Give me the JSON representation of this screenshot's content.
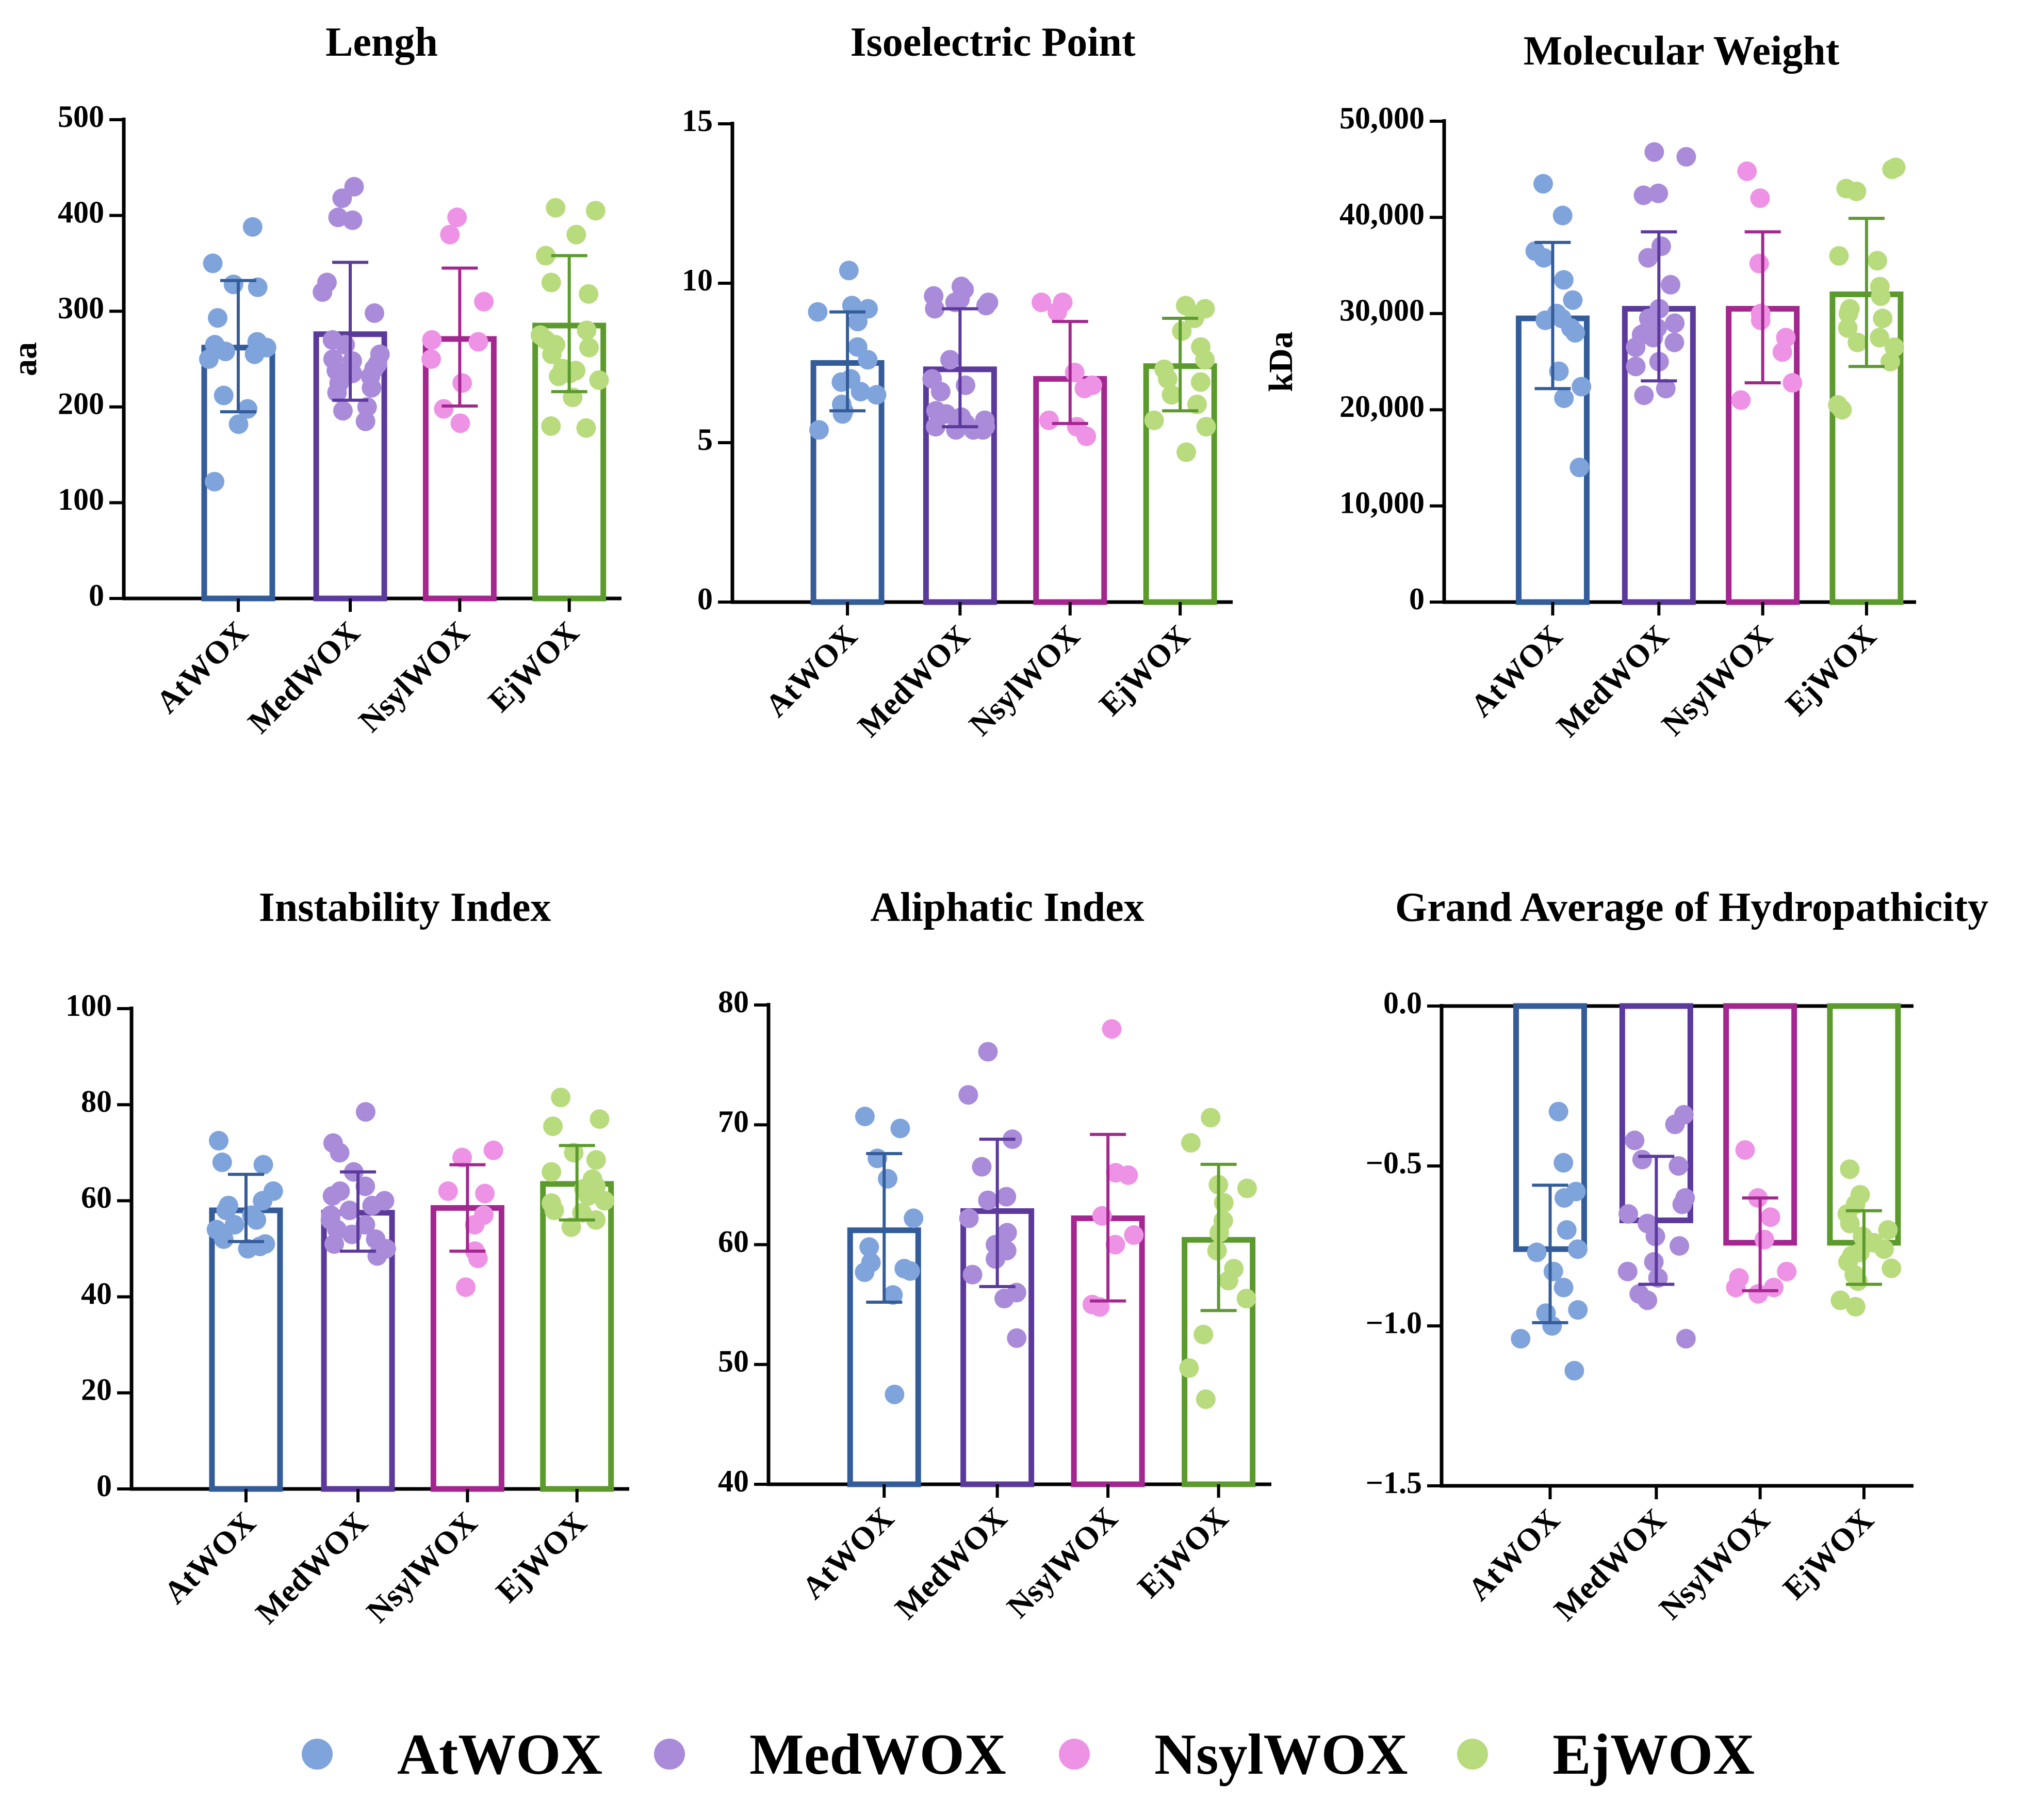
{
  "groups": [
    "AtWOX",
    "MedWOX",
    "NsylWOX",
    "EjWOX"
  ],
  "colors": {
    "bar": [
      "#335C99",
      "#5B3A9C",
      "#A3278F",
      "#5C9A2E"
    ],
    "dot": [
      "#7FA3DB",
      "#A98BD9",
      "#EE92E6",
      "#B8DB7D"
    ]
  },
  "legend": [
    {
      "label": "AtWOX",
      "color": "#7FA3DB"
    },
    {
      "label": "MedWOX",
      "color": "#A98BD9"
    },
    {
      "label": "NsylWOX",
      "color": "#EE92E6"
    },
    {
      "label": "EjWOX",
      "color": "#B8DB7D"
    }
  ],
  "chart_data": [
    {
      "type": "bar",
      "title": "Lengh",
      "ylabel": "aa",
      "ylim": [
        0,
        500
      ],
      "ticks": [
        0,
        100,
        200,
        300,
        400,
        500
      ],
      "tick_labels": [
        "0",
        "100",
        "200",
        "300",
        "400",
        "500"
      ],
      "categories": [
        "AtWOX",
        "MedWOX",
        "NsylWOX",
        "EjWOX"
      ],
      "means": [
        262,
        276,
        271,
        285
      ],
      "errors": [
        [
          195,
          332
        ],
        [
          207,
          351
        ],
        [
          201,
          345
        ],
        [
          216,
          358
        ]
      ],
      "points": [
        [
          388,
          350,
          328,
          325,
          293,
          268,
          265,
          262,
          258,
          255,
          250,
          212,
          198,
          182,
          122
        ],
        [
          430,
          418,
          398,
          395,
          330,
          320,
          298,
          270,
          265,
          255,
          250,
          248,
          245,
          240,
          238,
          235,
          232,
          225,
          220,
          215,
          200,
          196,
          185
        ],
        [
          398,
          380,
          310,
          270,
          268,
          250,
          225,
          198,
          183
        ],
        [
          408,
          405,
          380,
          358,
          330,
          318,
          280,
          275,
          270,
          265,
          262,
          255,
          240,
          238,
          235,
          232,
          228,
          210,
          180,
          178
        ]
      ]
    },
    {
      "type": "bar",
      "title": "Isoelectric Point",
      "ylabel": "",
      "ylim": [
        0,
        15
      ],
      "ticks": [
        0,
        5,
        10,
        15
      ],
      "tick_labels": [
        "0",
        "5",
        "10",
        "15"
      ],
      "categories": [
        "AtWOX",
        "MedWOX",
        "NsylWOX",
        "EjWOX"
      ],
      "means": [
        7.5,
        7.3,
        7.0,
        7.4
      ],
      "errors": [
        [
          6.0,
          9.1
        ],
        [
          5.5,
          9.2
        ],
        [
          5.6,
          8.8
        ],
        [
          6.0,
          8.9
        ]
      ],
      "points": [
        [
          10.4,
          9.3,
          9.2,
          9.1,
          8.8,
          8.0,
          7.6,
          7.0,
          6.9,
          6.6,
          6.5,
          6.2,
          6.0,
          5.9,
          5.4
        ],
        [
          9.9,
          9.8,
          9.6,
          9.5,
          9.4,
          9.4,
          9.3,
          9.2,
          7.6,
          7.0,
          6.8,
          6.6,
          6.0,
          5.9,
          5.8,
          5.7,
          5.6,
          5.5,
          5.5,
          5.4,
          5.4,
          5.4
        ],
        [
          9.4,
          9.4,
          9.1,
          7.2,
          6.8,
          6.7,
          5.7,
          5.5,
          5.2
        ],
        [
          9.3,
          9.2,
          9.0,
          8.9,
          8.5,
          8.0,
          7.6,
          7.3,
          7.0,
          6.9,
          6.5,
          6.2,
          5.7,
          5.5,
          4.7
        ]
      ]
    },
    {
      "type": "bar",
      "title": "Molecular Weight",
      "ylabel": "kDa",
      "ylim": [
        0,
        50000
      ],
      "ticks": [
        0,
        10000,
        20000,
        30000,
        40000,
        50000
      ],
      "tick_labels": [
        "0",
        "10,000",
        "20,000",
        "30,000",
        "40,000",
        "50,000"
      ],
      "categories": [
        "AtWOX",
        "MedWOX",
        "NsylWOX",
        "EjWOX"
      ],
      "means": [
        29500,
        30500,
        30500,
        32000
      ],
      "errors": [
        [
          22200,
          37400
        ],
        [
          23000,
          38500
        ],
        [
          22800,
          38500
        ],
        [
          24500,
          39900
        ]
      ],
      "points": [
        [
          43500,
          40200,
          36500,
          35800,
          33500,
          31400,
          30000,
          29500,
          29300,
          28500,
          28000,
          24000,
          22400,
          21200,
          14000
        ],
        [
          46800,
          46300,
          42500,
          42300,
          37000,
          35800,
          33000,
          30500,
          29500,
          29000,
          28500,
          28000,
          27800,
          27500,
          27000,
          26500,
          25000,
          24500,
          22200,
          21500
        ],
        [
          44800,
          42000,
          35200,
          30000,
          29300,
          27500,
          26000,
          22800,
          21000
        ],
        [
          45200,
          45000,
          43000,
          42700,
          36000,
          35500,
          32800,
          31800,
          30500,
          30000,
          29500,
          28500,
          27500,
          27000,
          26500,
          25000,
          20500,
          20000
        ]
      ]
    },
    {
      "type": "bar",
      "title": "Instability Index",
      "ylabel": "",
      "ylim": [
        0,
        100
      ],
      "ticks": [
        0,
        20,
        40,
        60,
        80,
        100
      ],
      "tick_labels": [
        "0",
        "20",
        "40",
        "60",
        "80",
        "100"
      ],
      "categories": [
        "AtWOX",
        "MedWOX",
        "NsylWOX",
        "EjWOX"
      ],
      "means": [
        58,
        57.5,
        58.5,
        63.5
      ],
      "errors": [
        [
          51.5,
          65.5
        ],
        [
          49.5,
          66
        ],
        [
          49.5,
          67.5
        ],
        [
          56,
          71.5
        ]
      ],
      "points": [
        [
          72.5,
          68,
          67.5,
          62,
          60,
          59,
          58,
          57,
          56,
          55,
          54,
          52,
          51,
          50.5,
          50
        ],
        [
          78.5,
          72,
          70,
          66,
          63,
          62,
          61,
          60,
          59,
          58,
          57,
          56,
          55,
          54,
          53,
          52,
          51,
          50,
          48.5
        ],
        [
          70.5,
          69,
          62,
          61.5,
          57,
          55,
          49.5,
          48,
          42
        ],
        [
          81.5,
          77,
          75.5,
          70,
          68.5,
          66,
          64.5,
          63,
          62.5,
          61,
          60,
          59.5,
          58,
          57.5,
          56,
          54.5
        ]
      ]
    },
    {
      "type": "bar",
      "title": "Aliphatic Index",
      "ylabel": "",
      "ylim": [
        40,
        80
      ],
      "ticks": [
        40,
        50,
        60,
        70,
        80
      ],
      "tick_labels": [
        "40",
        "50",
        "60",
        "70",
        "80"
      ],
      "categories": [
        "AtWOX",
        "MedWOX",
        "NsylWOX",
        "EjWOX"
      ],
      "means": [
        61.2,
        62.8,
        62.2,
        60.4
      ],
      "errors": [
        [
          55.2,
          67.6
        ],
        [
          56.5,
          68.8
        ],
        [
          55.3,
          69.2
        ],
        [
          54.5,
          66.7
        ]
      ],
      "points": [
        [
          70.7,
          69.7,
          67.2,
          65.5,
          62.2,
          59.8,
          58.5,
          58.0,
          57.8,
          57.7,
          55.8,
          47.5
        ],
        [
          76.1,
          72.5,
          68.8,
          66.5,
          64.0,
          63.7,
          62.2,
          61.0,
          60.0,
          59.5,
          58.8,
          57.5,
          56.0,
          55.5,
          52.2
        ],
        [
          78.0,
          66.0,
          65.8,
          62.4,
          60.8,
          60.0,
          55.0,
          54.8
        ],
        [
          70.6,
          68.5,
          65.0,
          64.7,
          63.5,
          62.0,
          61.0,
          59.5,
          58.0,
          57.0,
          55.5,
          52.5,
          49.7,
          47.1
        ]
      ]
    },
    {
      "type": "bar",
      "title": "Grand Average of Hydropathicity",
      "ylabel": "",
      "ylim": [
        -1.5,
        0
      ],
      "ticks": [
        -1.5,
        -1.0,
        -0.5,
        0.0
      ],
      "tick_labels": [
        "−1.5",
        "−1.0",
        "−0.5",
        "0.0"
      ],
      "categories": [
        "AtWOX",
        "MedWOX",
        "NsylWOX",
        "EjWOX"
      ],
      "means": [
        -0.76,
        -0.67,
        -0.74,
        -0.74
      ],
      "errors": [
        [
          -0.99,
          -0.56
        ],
        [
          -0.87,
          -0.47
        ],
        [
          -0.89,
          -0.6
        ],
        [
          -0.87,
          -0.64
        ]
      ],
      "points": [
        [
          -0.33,
          -0.49,
          -0.58,
          -0.6,
          -0.7,
          -0.76,
          -0.77,
          -0.83,
          -0.88,
          -0.95,
          -0.96,
          -1.0,
          -1.04,
          -1.14
        ],
        [
          -0.34,
          -0.37,
          -0.42,
          -0.48,
          -0.5,
          -0.6,
          -0.62,
          -0.65,
          -0.68,
          -0.72,
          -0.75,
          -0.8,
          -0.83,
          -0.85,
          -0.9,
          -0.92,
          -1.04
        ],
        [
          -0.45,
          -0.6,
          -0.66,
          -0.73,
          -0.83,
          -0.85,
          -0.88,
          -0.88,
          -0.9
        ],
        [
          -0.51,
          -0.59,
          -0.62,
          -0.65,
          -0.68,
          -0.7,
          -0.72,
          -0.74,
          -0.76,
          -0.77,
          -0.78,
          -0.8,
          -0.82,
          -0.84,
          -0.86,
          -0.92,
          -0.94
        ]
      ]
    }
  ]
}
